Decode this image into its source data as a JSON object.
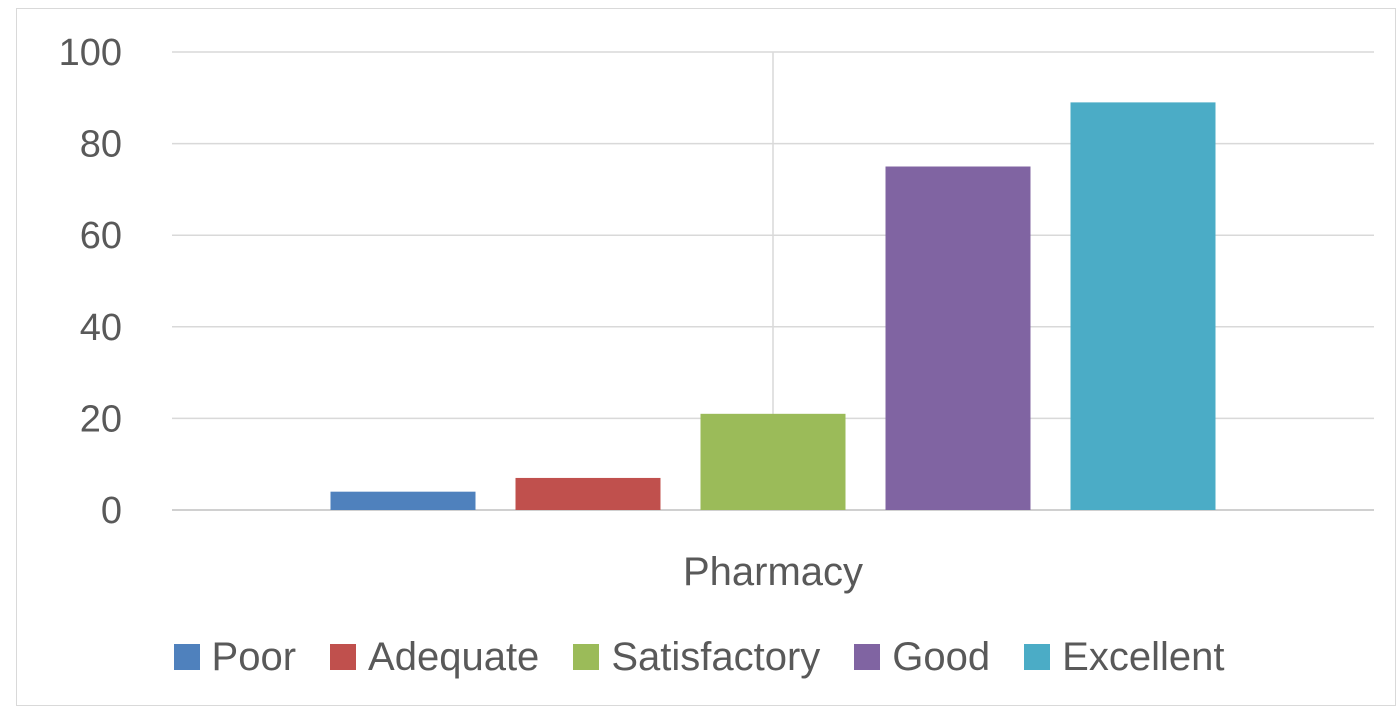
{
  "chart_data": {
    "type": "bar",
    "categories": [
      "Pharmacy"
    ],
    "series": [
      {
        "name": "Poor",
        "values": [
          4
        ],
        "color": "#4f81bd"
      },
      {
        "name": "Adequate",
        "values": [
          7
        ],
        "color": "#c0504d"
      },
      {
        "name": "Satisfactory",
        "values": [
          21
        ],
        "color": "#9bbb59"
      },
      {
        "name": "Good",
        "values": [
          75
        ],
        "color": "#8064a2"
      },
      {
        "name": "Excellent",
        "values": [
          89
        ],
        "color": "#4bacc6"
      }
    ],
    "y_ticks": [
      "0",
      "20",
      "40",
      "60",
      "80",
      "100"
    ],
    "ylim": [
      0,
      100
    ],
    "grid": true,
    "legend_position": "bottom"
  }
}
